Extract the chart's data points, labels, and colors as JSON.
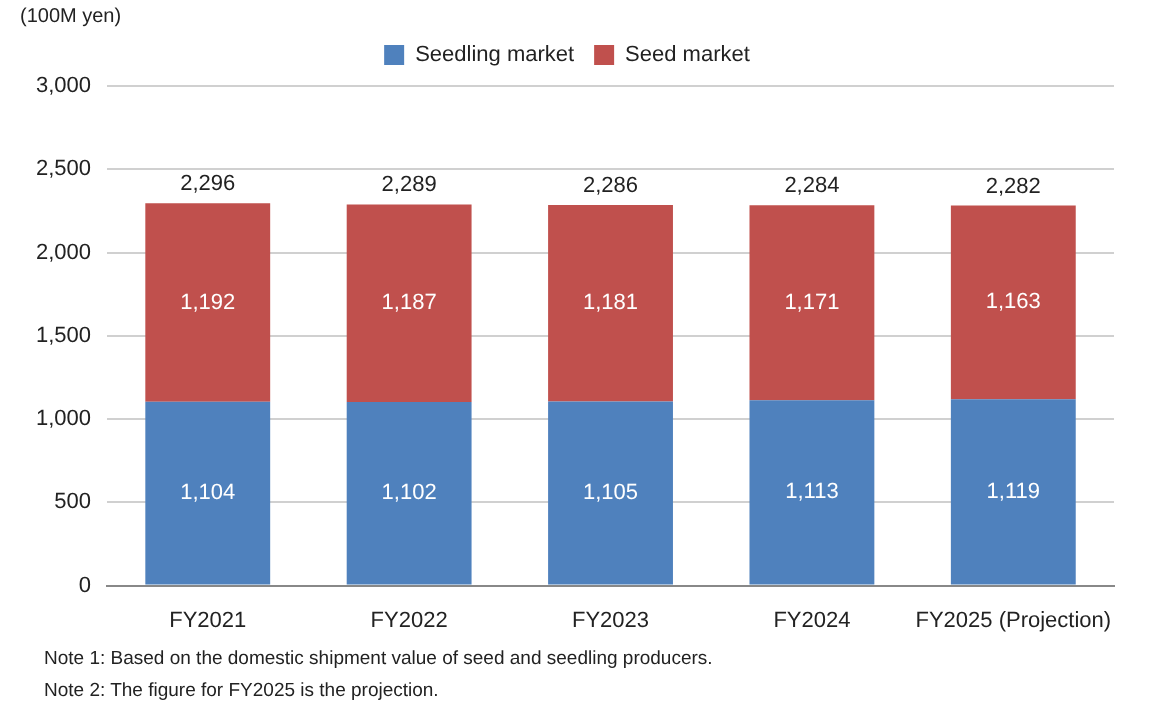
{
  "chart_data": {
    "type": "bar",
    "stacked": true,
    "ylabel": "(100M yen)",
    "categories": [
      "FY2021",
      "FY2022",
      "FY2023",
      "FY2024",
      "FY2025 (Projection)"
    ],
    "series": [
      {
        "name": "Seedling market",
        "color": "#4f81bd",
        "values": [
          1104,
          1102,
          1105,
          1113,
          1119
        ],
        "value_labels": [
          "1,104",
          "1,102",
          "1,105",
          "1,113",
          "1,119"
        ]
      },
      {
        "name": "Seed market",
        "color": "#c0504d",
        "values": [
          1192,
          1187,
          1181,
          1171,
          1163
        ],
        "value_labels": [
          "1,192",
          "1,187",
          "1,181",
          "1,171",
          "1,163"
        ]
      }
    ],
    "totals": [
      "2,296",
      "2,289",
      "2,286",
      "2,284",
      "2,282"
    ],
    "ylim": [
      0,
      3000
    ],
    "yticks": [
      0,
      500,
      {
        "value": 1000,
        "label": "1,000"
      },
      {
        "value": 1500,
        "label": "1,500"
      },
      {
        "value": 2000,
        "label": "2,000"
      },
      {
        "value": 2500,
        "label": "2,500"
      },
      {
        "value": 3000,
        "label": "3,000"
      }
    ],
    "grid": "y",
    "legend": "top",
    "annotations": [
      "Note 1: Based on the domestic shipment value of seed and seedling producers.",
      "Note 2: The figure for FY2025 is the projection."
    ]
  }
}
